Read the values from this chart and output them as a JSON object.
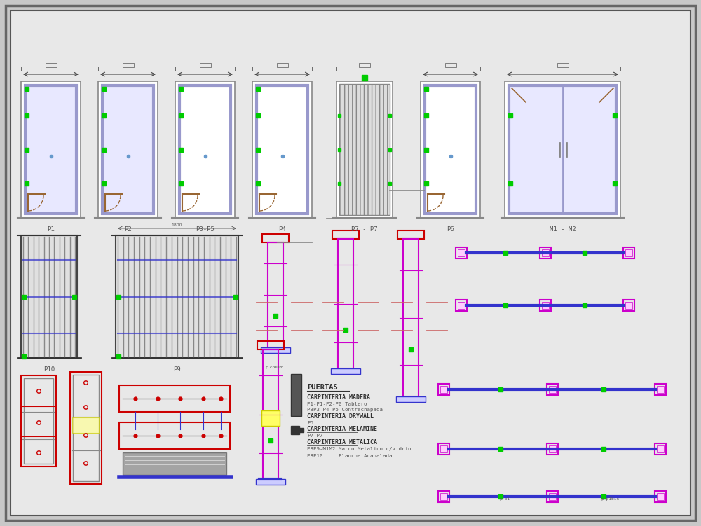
{
  "bg_color": "#c8c8c8",
  "inner_bg": "#e8e8e8",
  "border_color": "#555555",
  "door_frame_color": "#9999cc",
  "door_wood_color": "#996633",
  "green_dot_color": "#00cc00",
  "blue_dot_color": "#6699cc",
  "red_color": "#cc0000",
  "magenta_color": "#cc00cc",
  "blue_color": "#3333cc",
  "yellow_color": "#cccc00",
  "gray_color": "#888888",
  "dark_gray": "#444444",
  "light_gray": "#aaaaaa",
  "text_color": "#555555",
  "labels": [
    "P1",
    "P2",
    "P3-P5",
    "P4",
    "P7 - P7",
    "P6",
    "M1 - M2"
  ],
  "legend_title": "PUERTAS",
  "legend_items": [
    "CARPINTERIA MADERA",
    "P1-P1-P2-P0 Tablero",
    "P3P3-P4-P5 Contrachapada",
    "CARPINTERIA DRYWALL",
    "P6",
    "CARPINTERIA MELAMINE",
    "P7-P7",
    "CARPINTERIA METALICA",
    "P8P9-M1M2 Marco Metalico c/vidrio",
    "P8P10     Plancha Acanalada"
  ]
}
